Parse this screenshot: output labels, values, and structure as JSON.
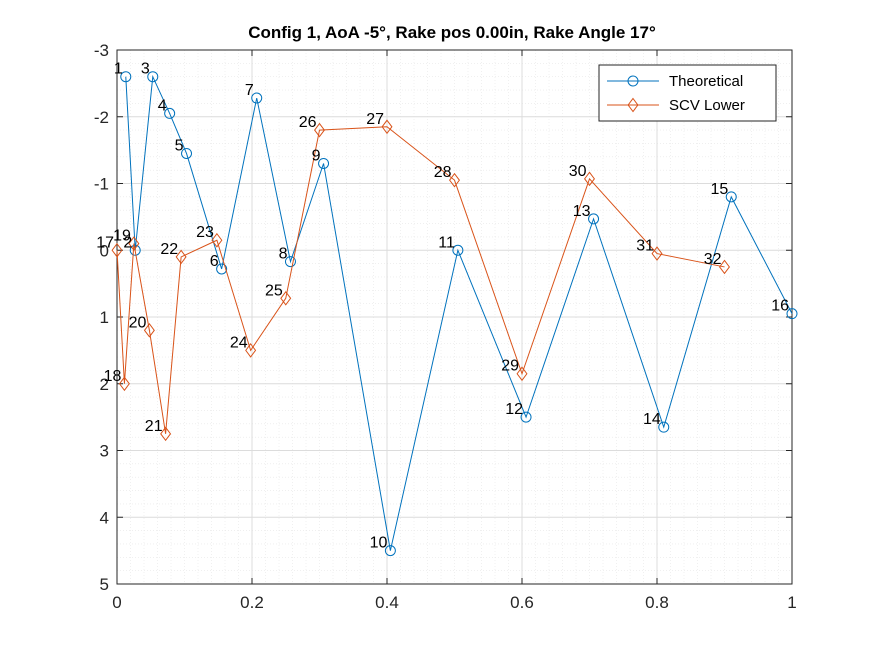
{
  "chart_data": {
    "type": "line",
    "title": "Config 1, AoA -5°, Rake pos 0.00in, Rake Angle 17°",
    "xlabel": "",
    "ylabel": "",
    "xlim": [
      0,
      1
    ],
    "ylim": [
      -3,
      5
    ],
    "y_reversed": true,
    "x_ticks": [
      0,
      0.2,
      0.4,
      0.6,
      0.8,
      1
    ],
    "x_tick_labels": [
      "0",
      "0.2",
      "0.4",
      "0.6",
      "0.8",
      "1"
    ],
    "y_ticks": [
      -3,
      -2,
      -1,
      0,
      1,
      2,
      3,
      4,
      5
    ],
    "y_tick_labels": [
      "-3",
      "-2",
      "-1",
      "0",
      "1",
      "2",
      "3",
      "4",
      "5"
    ],
    "grid": true,
    "minor_grid": true,
    "legend_position": "top-right",
    "series": [
      {
        "name": "Theoretical",
        "color": "#0072BD",
        "marker": "circle",
        "points": [
          {
            "x": 0.013,
            "y": -2.6,
            "label": "1"
          },
          {
            "x": 0.027,
            "y": 0.0,
            "label": "2"
          },
          {
            "x": 0.053,
            "y": -2.6,
            "label": "3"
          },
          {
            "x": 0.078,
            "y": -2.05,
            "label": "4"
          },
          {
            "x": 0.103,
            "y": -1.45,
            "label": "5"
          },
          {
            "x": 0.155,
            "y": 0.28,
            "label": "6"
          },
          {
            "x": 0.207,
            "y": -2.28,
            "label": "7"
          },
          {
            "x": 0.257,
            "y": 0.17,
            "label": "8"
          },
          {
            "x": 0.306,
            "y": -1.3,
            "label": "9"
          },
          {
            "x": 0.405,
            "y": 4.5,
            "label": "10"
          },
          {
            "x": 0.505,
            "y": 0.0,
            "label": "11"
          },
          {
            "x": 0.606,
            "y": 2.5,
            "label": "12"
          },
          {
            "x": 0.706,
            "y": -0.47,
            "label": "13"
          },
          {
            "x": 0.81,
            "y": 2.65,
            "label": "14"
          },
          {
            "x": 0.91,
            "y": -0.8,
            "label": "15"
          },
          {
            "x": 1.0,
            "y": 0.95,
            "label": "16"
          }
        ]
      },
      {
        "name": "SCV Lower",
        "color": "#D95319",
        "marker": "diamond",
        "points": [
          {
            "x": 0.0,
            "y": 0.0,
            "label": "17"
          },
          {
            "x": 0.011,
            "y": 2.0,
            "label": "18"
          },
          {
            "x": 0.025,
            "y": -0.1,
            "label": "19"
          },
          {
            "x": 0.048,
            "y": 1.2,
            "label": "20"
          },
          {
            "x": 0.072,
            "y": 2.75,
            "label": "21"
          },
          {
            "x": 0.095,
            "y": 0.1,
            "label": "22"
          },
          {
            "x": 0.148,
            "y": -0.15,
            "label": "23"
          },
          {
            "x": 0.198,
            "y": 1.5,
            "label": "24"
          },
          {
            "x": 0.25,
            "y": 0.72,
            "label": "25"
          },
          {
            "x": 0.3,
            "y": -1.8,
            "label": "26"
          },
          {
            "x": 0.4,
            "y": -1.85,
            "label": "27"
          },
          {
            "x": 0.5,
            "y": -1.05,
            "label": "28"
          },
          {
            "x": 0.6,
            "y": 1.85,
            "label": "29"
          },
          {
            "x": 0.7,
            "y": -1.07,
            "label": "30"
          },
          {
            "x": 0.8,
            "y": 0.05,
            "label": "31"
          },
          {
            "x": 0.9,
            "y": 0.25,
            "label": "32"
          }
        ]
      }
    ]
  }
}
